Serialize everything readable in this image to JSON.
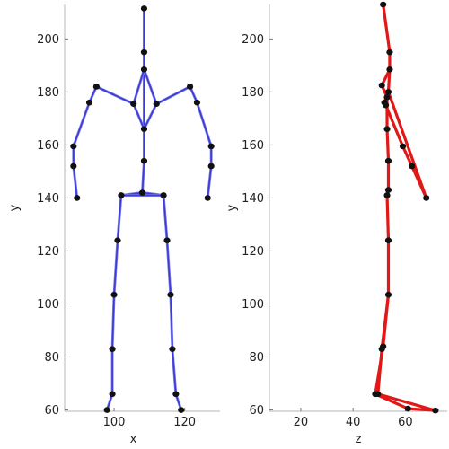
{
  "chart_data": [
    {
      "type": "line",
      "xlabel": "x",
      "ylabel": "y",
      "xlim": [
        86,
        130
      ],
      "ylim": [
        59.5,
        213
      ],
      "xticks": [
        100,
        120
      ],
      "yticks": [
        60,
        80,
        100,
        120,
        140,
        160,
        180,
        200
      ],
      "line_color": "#3b3bd6",
      "line_color_outer": "#8080e8",
      "joint_color": "#111111",
      "joints": [
        {
          "x": 108.5,
          "y": 211.5
        },
        {
          "x": 108.5,
          "y": 195.0
        },
        {
          "x": 108.5,
          "y": 188.5
        },
        {
          "x": 105.5,
          "y": 175.5
        },
        {
          "x": 95.0,
          "y": 182.0
        },
        {
          "x": 93.0,
          "y": 176.0
        },
        {
          "x": 88.5,
          "y": 159.5
        },
        {
          "x": 88.5,
          "y": 152.0
        },
        {
          "x": 89.5,
          "y": 140.0
        },
        {
          "x": 112.0,
          "y": 175.5
        },
        {
          "x": 121.5,
          "y": 182.0
        },
        {
          "x": 123.5,
          "y": 176.0
        },
        {
          "x": 127.5,
          "y": 159.5
        },
        {
          "x": 127.5,
          "y": 152.0
        },
        {
          "x": 126.5,
          "y": 140.0
        },
        {
          "x": 108.5,
          "y": 166.0
        },
        {
          "x": 108.5,
          "y": 154.0
        },
        {
          "x": 108.0,
          "y": 142.0
        },
        {
          "x": 102.0,
          "y": 141.0
        },
        {
          "x": 101.0,
          "y": 124.0
        },
        {
          "x": 100.0,
          "y": 103.5
        },
        {
          "x": 99.5,
          "y": 83.0
        },
        {
          "x": 99.5,
          "y": 66.0
        },
        {
          "x": 98.0,
          "y": 60.0
        },
        {
          "x": 114.0,
          "y": 141.0
        },
        {
          "x": 115.0,
          "y": 124.0
        },
        {
          "x": 116.0,
          "y": 103.5
        },
        {
          "x": 116.5,
          "y": 83.0
        },
        {
          "x": 117.5,
          "y": 66.0
        },
        {
          "x": 119.0,
          "y": 60.0
        }
      ],
      "bones": [
        [
          0,
          1
        ],
        [
          1,
          2
        ],
        [
          2,
          15
        ],
        [
          15,
          16
        ],
        [
          16,
          17
        ],
        [
          2,
          3
        ],
        [
          3,
          4
        ],
        [
          4,
          5
        ],
        [
          5,
          6
        ],
        [
          6,
          7
        ],
        [
          7,
          8
        ],
        [
          2,
          9
        ],
        [
          9,
          10
        ],
        [
          10,
          11
        ],
        [
          11,
          12
        ],
        [
          12,
          13
        ],
        [
          13,
          14
        ],
        [
          3,
          15
        ],
        [
          9,
          15
        ],
        [
          17,
          18
        ],
        [
          18,
          19
        ],
        [
          19,
          20
        ],
        [
          20,
          21
        ],
        [
          21,
          22
        ],
        [
          22,
          23
        ],
        [
          17,
          24
        ],
        [
          24,
          25
        ],
        [
          25,
          26
        ],
        [
          26,
          27
        ],
        [
          27,
          28
        ],
        [
          28,
          29
        ],
        [
          18,
          24
        ]
      ]
    },
    {
      "type": "line",
      "xlabel": "z",
      "ylabel": "y",
      "xlim": [
        8,
        76
      ],
      "ylim": [
        59.5,
        213
      ],
      "xticks": [
        20,
        40,
        60
      ],
      "yticks": [
        60,
        80,
        100,
        120,
        140,
        160,
        180,
        200
      ],
      "line_color": "#e01818",
      "joint_color": "#111111",
      "joints": [
        {
          "x": 51.5,
          "y": 213.0
        },
        {
          "x": 54.0,
          "y": 195.0
        },
        {
          "x": 54.0,
          "y": 188.5
        },
        {
          "x": 53.5,
          "y": 180.0
        },
        {
          "x": 52.0,
          "y": 176.0
        },
        {
          "x": 52.5,
          "y": 175.0
        },
        {
          "x": 59.0,
          "y": 159.5
        },
        {
          "x": 62.5,
          "y": 152.0
        },
        {
          "x": 68.0,
          "y": 140.0
        },
        {
          "x": 51.0,
          "y": 182.5
        },
        {
          "x": 53.0,
          "y": 178.0
        },
        {
          "x": 53.0,
          "y": 166.0
        },
        {
          "x": 53.5,
          "y": 154.0
        },
        {
          "x": 53.5,
          "y": 143.0
        },
        {
          "x": 53.0,
          "y": 141.0
        },
        {
          "x": 53.5,
          "y": 124.0
        },
        {
          "x": 53.5,
          "y": 103.5
        },
        {
          "x": 51.5,
          "y": 84.0
        },
        {
          "x": 51.0,
          "y": 83.0
        },
        {
          "x": 48.5,
          "y": 66.0
        },
        {
          "x": 49.5,
          "y": 66.0
        },
        {
          "x": 61.0,
          "y": 60.5
        },
        {
          "x": 71.5,
          "y": 59.8
        }
      ],
      "bones": [
        [
          0,
          1
        ],
        [
          1,
          2
        ],
        [
          2,
          3
        ],
        [
          3,
          4
        ],
        [
          4,
          5
        ],
        [
          5,
          6
        ],
        [
          6,
          7
        ],
        [
          7,
          8
        ],
        [
          3,
          8
        ],
        [
          2,
          9
        ],
        [
          9,
          10
        ],
        [
          10,
          11
        ],
        [
          11,
          12
        ],
        [
          12,
          13
        ],
        [
          13,
          14
        ],
        [
          14,
          15
        ],
        [
          15,
          16
        ],
        [
          16,
          17
        ],
        [
          17,
          19
        ],
        [
          19,
          21
        ],
        [
          21,
          22
        ],
        [
          16,
          18
        ],
        [
          18,
          20
        ],
        [
          20,
          22
        ]
      ]
    }
  ]
}
